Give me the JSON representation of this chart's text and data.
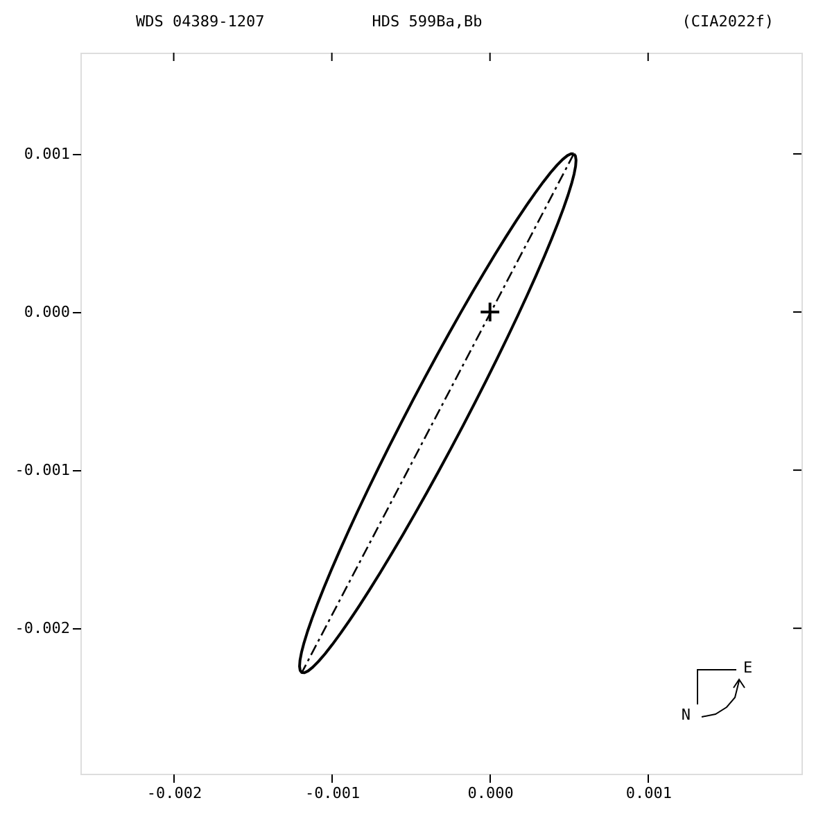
{
  "chart_data": {
    "type": "line",
    "title": "HDS 599Ba,Bb",
    "annotations": [
      "WDS 04389-1207",
      "(CIA2022f)",
      "N",
      "E"
    ],
    "xlim": [
      -0.00259,
      0.00197
    ],
    "ylim": [
      -0.00292,
      0.00164
    ],
    "xticks": [
      {
        "value": -0.002,
        "label": "-0.002"
      },
      {
        "value": -0.001,
        "label": "-0.001"
      },
      {
        "value": 0,
        "label": "0.000"
      },
      {
        "value": 0.001,
        "label": "0.001"
      }
    ],
    "yticks": [
      {
        "value": -0.002,
        "label": "-0.002"
      },
      {
        "value": -0.001,
        "label": "-0.001"
      },
      {
        "value": 0,
        "label": "0.000"
      },
      {
        "value": 0.001,
        "label": "0.001"
      }
    ],
    "grid": false,
    "series": [
      {
        "color": "#000000",
        "line_style": "dashed",
        "marker": "none",
        "x": [
          0.00053,
          -0.00119
        ],
        "values": [
          0.001,
          -0.00228
        ]
      },
      {
        "type": "scatter",
        "color": "#000000",
        "marker": "cross",
        "x": [
          0
        ],
        "values": [
          0
        ]
      }
    ]
  }
}
